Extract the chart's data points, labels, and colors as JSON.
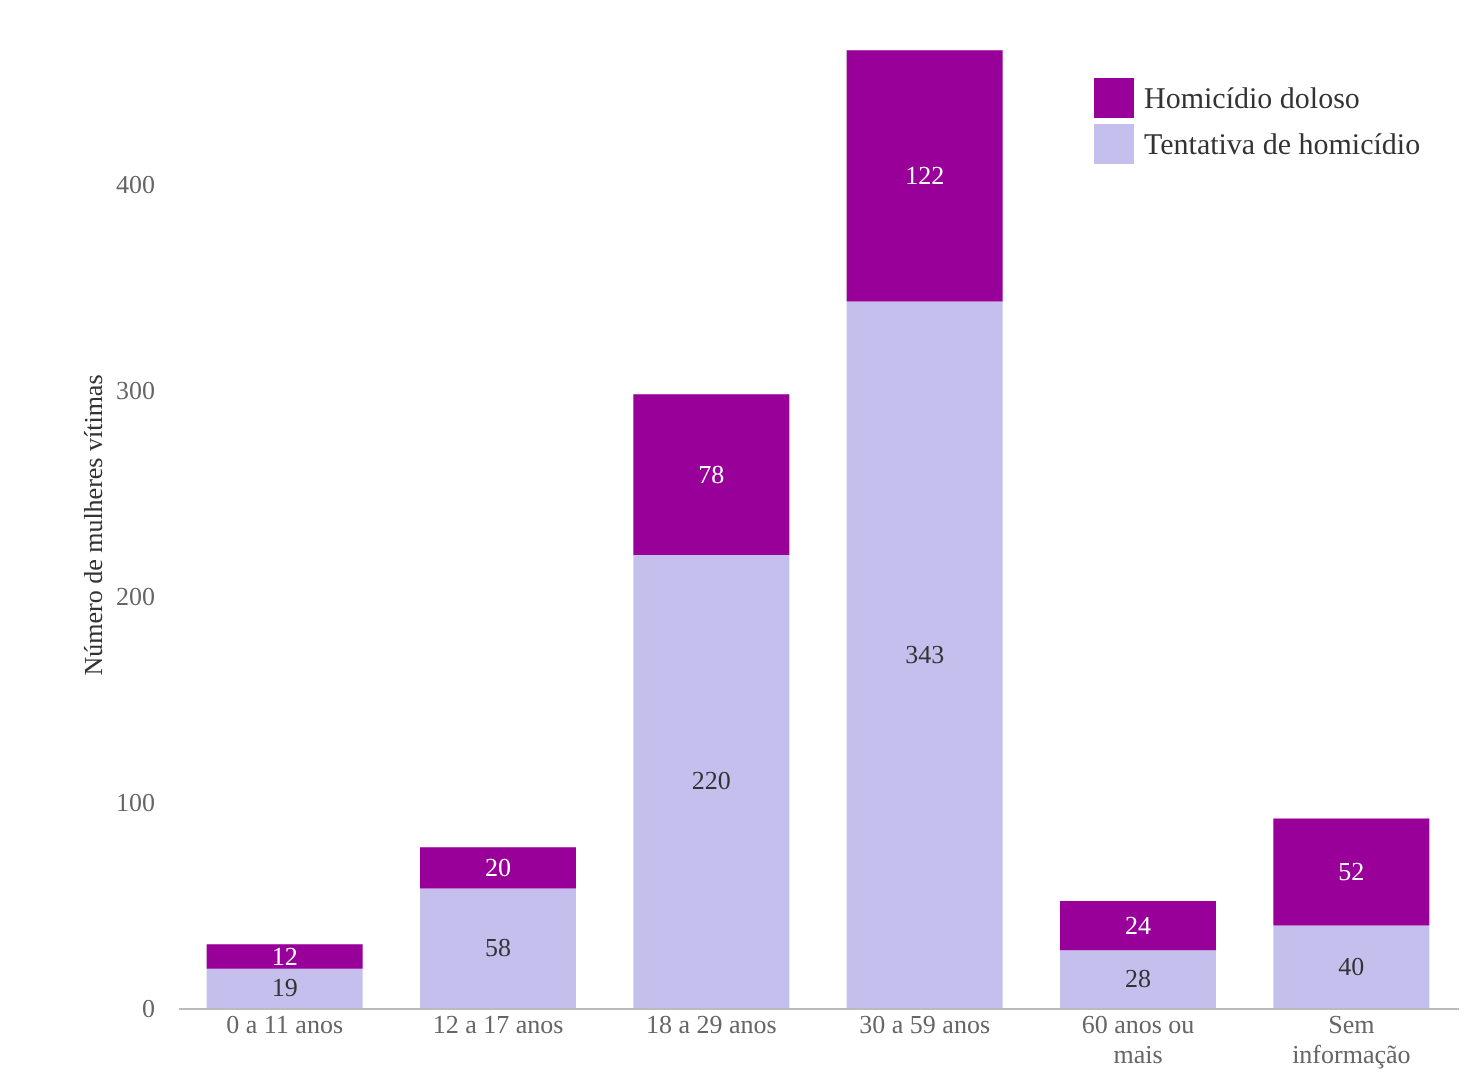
{
  "chart_data": {
    "type": "bar",
    "stacked": true,
    "ylabel": "Número de mulheres vítimas",
    "categories": [
      "0 a 11 anos",
      "12 a 17 anos",
      "18 a 29 anos",
      "30 a 59 anos",
      "60 anos ou mais",
      "Sem informação"
    ],
    "series": [
      {
        "name": "Tentativa de homicídio",
        "color": "#c5bfee",
        "values": [
          19,
          58,
          220,
          343,
          28,
          40
        ]
      },
      {
        "name": "Homicídio doloso",
        "color": "#990099",
        "values": [
          12,
          20,
          78,
          122,
          24,
          52
        ]
      }
    ],
    "ylim": [
      0,
      470
    ],
    "yticks": [
      0,
      100,
      200,
      300,
      400
    ],
    "grid": false,
    "legend": "top right",
    "data_labels": true
  }
}
